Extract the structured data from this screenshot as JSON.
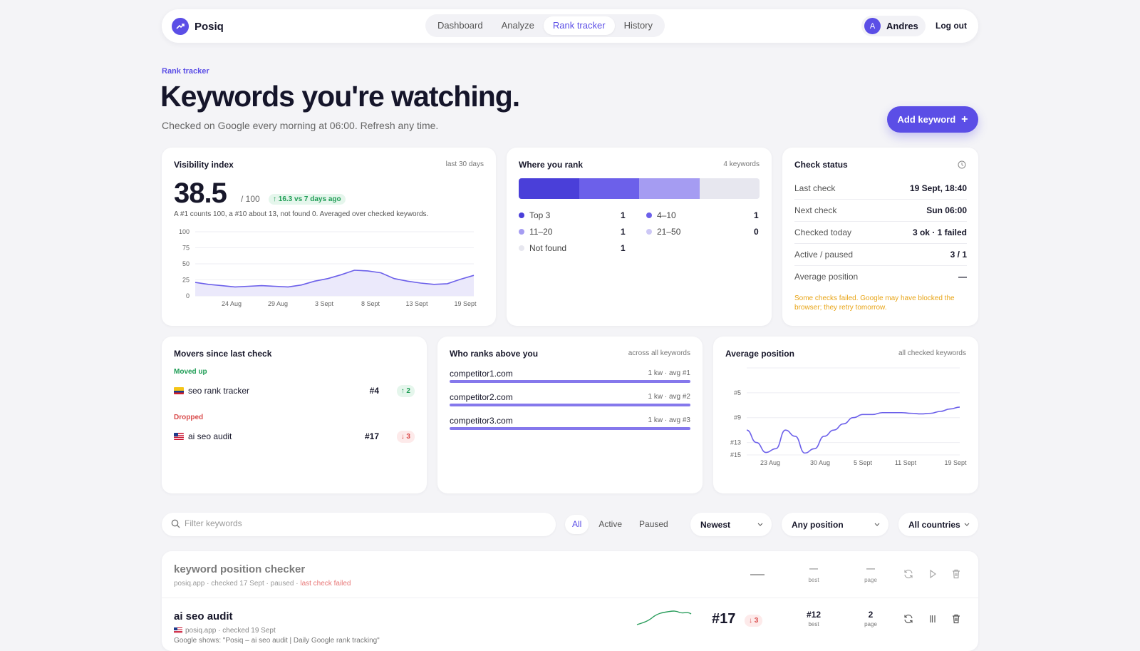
{
  "brand": {
    "name": "Posiq",
    "logo_icon": "trend-up-icon"
  },
  "nav": {
    "items": [
      "Dashboard",
      "Analyze",
      "Rank tracker",
      "History"
    ],
    "active": "Rank tracker"
  },
  "user": {
    "initial": "A",
    "name": "Andres",
    "logout": "Log out"
  },
  "hero": {
    "eyebrow": "Rank tracker",
    "title": "Keywords you're watching.",
    "subtitle": "Checked on Google every morning at 06:00. Refresh any time.",
    "add_button": "Add keyword"
  },
  "visibility": {
    "title": "Visibility index",
    "range": "last 30 days",
    "value": "38.5",
    "of": "/ 100",
    "delta": "16.3 vs 7 days ago",
    "note": "A #1 counts 100, a #10 about 13, not found 0. Averaged over checked keywords."
  },
  "chart_data": [
    {
      "type": "area",
      "y_ticks": [
        "100",
        "75",
        "50",
        "25",
        "0"
      ],
      "ylim": [
        0,
        100
      ],
      "x_ticks": [
        "24 Aug",
        "29 Aug",
        "3 Sept",
        "8 Sept",
        "13 Sept",
        "19 Sept"
      ],
      "values": [
        21,
        18,
        16,
        14,
        15,
        16,
        15,
        14,
        17,
        23,
        27,
        33,
        40,
        39,
        36,
        27,
        23,
        20,
        18,
        19,
        26,
        32
      ]
    },
    {
      "type": "line",
      "y_ticks": [
        "#5",
        "#9",
        "#13",
        "#15"
      ],
      "ylim": [
        1,
        15
      ],
      "reverse_y": true,
      "x_ticks": [
        "23 Aug",
        "30 Aug",
        "5 Sept",
        "11 Sept",
        "19 Sept"
      ],
      "values": [
        11,
        13,
        14.6,
        14,
        11,
        12,
        14.7,
        14,
        12,
        11,
        10,
        9,
        8.5,
        8.5,
        8.2,
        8.2,
        8.2,
        8.3,
        8.4,
        8.3,
        8,
        7.6,
        7.3
      ]
    }
  ],
  "ranks": {
    "title": "Where you rank",
    "count": "4 keywords",
    "segments": [
      {
        "label": "Top 3",
        "value": "1",
        "color": "#4a3fd9"
      },
      {
        "label": "4–10",
        "value": "1",
        "color": "#6c60ea"
      },
      {
        "label": "11–20",
        "value": "1",
        "color": "#a59cf2"
      },
      {
        "label": "21–50",
        "value": "0",
        "color": "#cdc8f6"
      },
      {
        "label": "Not found",
        "value": "1",
        "color": "#e7e7ef"
      }
    ]
  },
  "status": {
    "title": "Check status",
    "rows": [
      {
        "k": "Last check",
        "v": "19 Sept, 18:40"
      },
      {
        "k": "Next check",
        "v": "Sun 06:00"
      },
      {
        "k": "Checked today",
        "v": "3 ok · 1 failed"
      },
      {
        "k": "Active / paused",
        "v": "3 / 1"
      },
      {
        "k": "Average position",
        "v": "—"
      }
    ],
    "warning": "Some checks failed. Google may have blocked the browser; they retry tomorrow."
  },
  "movers": {
    "title": "Movers since last check",
    "up_label": "Moved up",
    "down_label": "Dropped",
    "up": {
      "name": "seo rank tracker",
      "pos": "#4",
      "chip": "↑ 2"
    },
    "down": {
      "name": "ai seo audit",
      "pos": "#17",
      "chip": "↓ 3"
    }
  },
  "competitors": {
    "title": "Who ranks above you",
    "sub": "across all keywords",
    "items": [
      {
        "name": "competitor1.com",
        "meta": "1 kw · avg #1"
      },
      {
        "name": "competitor2.com",
        "meta": "1 kw · avg #2"
      },
      {
        "name": "competitor3.com",
        "meta": "1 kw · avg #3"
      }
    ]
  },
  "avgpos": {
    "title": "Average position",
    "sub": "all checked keywords"
  },
  "filters": {
    "search_placeholder": "Filter keywords",
    "segments": [
      "All",
      "Active",
      "Paused"
    ],
    "sort": "Newest",
    "position": "Any position",
    "countries": "All countries"
  },
  "keywords": [
    {
      "title": "keyword position checker",
      "meta": "posiq.app · checked 17 Sept · paused · ",
      "fail": "last check failed",
      "best": "—",
      "best_label": "best",
      "page": "—",
      "page_label": "page"
    },
    {
      "title": "ai seo audit",
      "meta": "posiq.app · checked 19 Sept",
      "desc": "Google shows: \"Posiq – ai seo audit | Daily Google rank tracking\"",
      "pos": "#17",
      "chip": "↓ 3",
      "best": "#12",
      "best_label": "best",
      "page": "2",
      "page_label": "page"
    }
  ]
}
